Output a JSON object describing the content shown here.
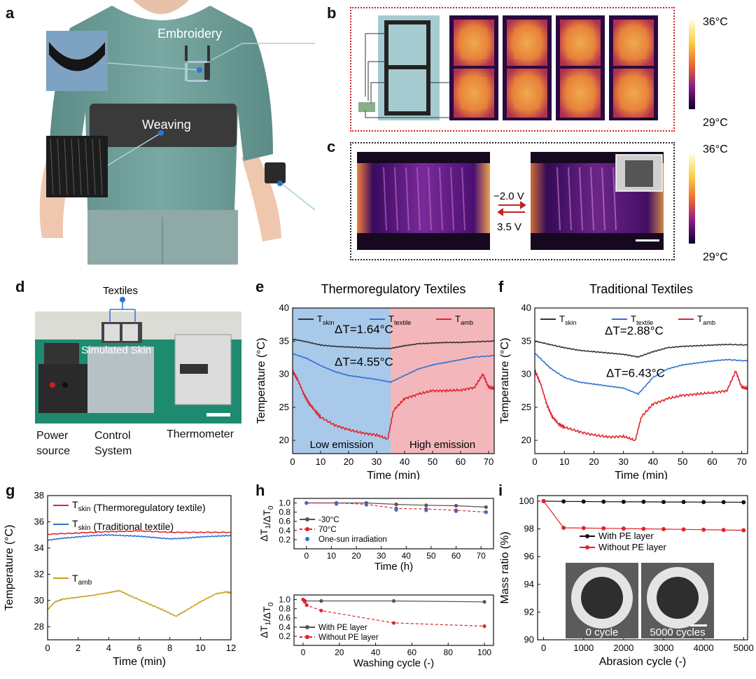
{
  "panels": {
    "a": {
      "letter": "a",
      "embroidery": "Embroidery",
      "weaving": "Weaving"
    },
    "b": {
      "letter": "b",
      "scale_max": "36°C",
      "scale_min": "29°C"
    },
    "c": {
      "letter": "c",
      "voltage_top": "−2.0 V",
      "voltage_bottom": "3.5 V",
      "scale_max": "36°C",
      "scale_min": "29°C"
    },
    "d": {
      "letter": "d",
      "textiles": "Textiles",
      "simulated_skin": "Simulated Skin",
      "power_source_1": "Power",
      "power_source_2": "source",
      "control_1": "Control",
      "control_2": "System",
      "thermometer": "Thermometer"
    },
    "e": {
      "letter": "e"
    },
    "f": {
      "letter": "f"
    },
    "g": {
      "letter": "g"
    },
    "h": {
      "letter": "h"
    },
    "i": {
      "letter": "i",
      "img_label_0": "0 cycle",
      "img_label_1": "5000 cycles"
    }
  },
  "chart_data": [
    {
      "id": "e",
      "type": "line",
      "title": "Thermoregulatory Textiles",
      "xlabel": "Time (min)",
      "ylabel": "Temperature (°C)",
      "xlim": [
        0,
        72
      ],
      "ylim": [
        18,
        40
      ],
      "xticks": [
        0,
        10,
        20,
        30,
        40,
        50,
        60,
        70
      ],
      "yticks": [
        20,
        25,
        30,
        35,
        40
      ],
      "regions": [
        {
          "label": "Low emission",
          "x": [
            0,
            35
          ],
          "color": "#a9c9ea"
        },
        {
          "label": "High emission",
          "x": [
            35,
            72
          ],
          "color": "#f3b7bb"
        }
      ],
      "legend": [
        "T_skin",
        "T_textile",
        "T_amb"
      ],
      "annotations": [
        "ΔT=1.64°C",
        "ΔT=4.55°C"
      ],
      "series": [
        {
          "name": "T_skin",
          "color": "#333333",
          "x": [
            0,
            5,
            10,
            15,
            20,
            25,
            30,
            35,
            40,
            45,
            50,
            55,
            60,
            65,
            72
          ],
          "y": [
            35.3,
            34.9,
            34.4,
            34.2,
            34.1,
            34.0,
            33.9,
            33.9,
            34.3,
            34.6,
            34.7,
            34.8,
            34.8,
            34.9,
            35.0
          ]
        },
        {
          "name": "T_textile",
          "color": "#2f72d3",
          "x": [
            0,
            5,
            10,
            15,
            20,
            25,
            30,
            35,
            40,
            45,
            50,
            55,
            60,
            65,
            72
          ],
          "y": [
            33.1,
            32.4,
            31.3,
            30.4,
            29.8,
            29.5,
            29.2,
            28.8,
            29.8,
            30.8,
            31.4,
            31.8,
            32.2,
            32.6,
            32.8
          ]
        },
        {
          "name": "T_amb",
          "color": "#e0252c",
          "x": [
            0,
            2,
            4,
            6,
            8,
            10,
            15,
            20,
            25,
            30,
            34,
            36,
            40,
            45,
            50,
            55,
            60,
            65,
            68,
            70,
            72
          ],
          "y": [
            30.5,
            29.0,
            27.0,
            25.5,
            24.5,
            23.5,
            22.3,
            21.6,
            21.1,
            20.8,
            20.2,
            24.5,
            26.3,
            27.0,
            27.5,
            27.5,
            27.6,
            28.0,
            30.0,
            28.0,
            27.8
          ]
        }
      ]
    },
    {
      "id": "f",
      "type": "line",
      "title": "Traditional Textiles",
      "xlabel": "Time (min)",
      "ylabel": "Temperature (°C)",
      "xlim": [
        0,
        72
      ],
      "ylim": [
        18,
        40
      ],
      "xticks": [
        0,
        10,
        20,
        30,
        40,
        50,
        60,
        70
      ],
      "yticks": [
        20,
        25,
        30,
        35,
        40
      ],
      "legend": [
        "T_skin",
        "T_textile",
        "T_amb"
      ],
      "annotations": [
        "ΔT=2.88°C",
        "ΔT=6.43°C"
      ],
      "series": [
        {
          "name": "T_skin",
          "color": "#333333",
          "x": [
            0,
            5,
            10,
            15,
            20,
            25,
            30,
            35,
            40,
            45,
            50,
            55,
            60,
            65,
            72
          ],
          "y": [
            35.0,
            34.5,
            34.0,
            33.6,
            33.4,
            33.2,
            33.0,
            32.6,
            33.4,
            34.0,
            34.2,
            34.3,
            34.4,
            34.5,
            34.4
          ]
        },
        {
          "name": "T_textile",
          "color": "#2f72d3",
          "x": [
            0,
            5,
            10,
            15,
            20,
            25,
            30,
            35,
            40,
            45,
            50,
            55,
            60,
            65,
            72
          ],
          "y": [
            33.2,
            31.0,
            29.5,
            28.8,
            28.5,
            28.2,
            27.9,
            27.0,
            29.5,
            30.8,
            31.4,
            31.7,
            32.0,
            32.2,
            32.0
          ]
        },
        {
          "name": "T_amb",
          "color": "#e0252c",
          "x": [
            0,
            2,
            4,
            6,
            8,
            10,
            15,
            20,
            25,
            30,
            34,
            36,
            40,
            45,
            50,
            55,
            60,
            65,
            68,
            70,
            72
          ],
          "y": [
            30.6,
            28.5,
            25.5,
            23.5,
            22.5,
            22.0,
            21.3,
            20.8,
            20.5,
            20.6,
            20.0,
            23.5,
            25.5,
            26.3,
            26.8,
            27.0,
            27.2,
            27.5,
            30.5,
            28.0,
            27.8
          ]
        }
      ]
    },
    {
      "id": "g",
      "type": "line",
      "xlabel": "Time (min)",
      "ylabel": "Temperature (°C)",
      "xlim": [
        0,
        12
      ],
      "ylim": [
        27,
        38
      ],
      "xticks": [
        0,
        2,
        4,
        6,
        8,
        10,
        12
      ],
      "yticks": [
        28,
        30,
        32,
        34,
        36,
        38
      ],
      "legend": [
        "T_skin (Thermoregulatory textile)",
        "T_skin (Traditional textile)"
      ],
      "label_amb": "T_amb",
      "series": [
        {
          "name": "T_skin (Thermoregulatory textile)",
          "color": "#e0252c",
          "x": [
            0,
            2,
            4,
            6,
            8,
            10,
            12
          ],
          "y": [
            35.05,
            35.15,
            35.25,
            35.3,
            35.2,
            35.2,
            35.2
          ]
        },
        {
          "name": "T_skin (Traditional textile)",
          "color": "#2f72d3",
          "x": [
            0,
            1,
            2,
            3,
            4,
            5,
            6,
            7,
            8,
            9,
            10,
            11,
            12
          ],
          "y": [
            34.6,
            34.75,
            34.85,
            34.95,
            35.0,
            34.95,
            34.9,
            34.8,
            34.7,
            34.75,
            34.85,
            34.9,
            34.95
          ]
        },
        {
          "name": "T_amb",
          "color": "#c8a020",
          "x": [
            0,
            0.5,
            1,
            2,
            3,
            4,
            4.7,
            5.5,
            6.5,
            7.5,
            8.4,
            9,
            10,
            11,
            11.7,
            12
          ],
          "y": [
            29.3,
            29.9,
            30.1,
            30.25,
            30.4,
            30.6,
            30.75,
            30.3,
            29.8,
            29.3,
            28.8,
            29.2,
            29.9,
            30.5,
            30.65,
            30.6
          ]
        }
      ]
    },
    {
      "id": "h_top",
      "type": "line",
      "xlabel": "Time (h)",
      "ylabel": "ΔT1/ΔT0",
      "xlim": [
        -5,
        75
      ],
      "ylim": [
        0,
        1.1
      ],
      "xticks": [
        0,
        10,
        20,
        30,
        40,
        50,
        60,
        70
      ],
      "yticks": [
        0.2,
        0.4,
        0.6,
        0.8,
        1.0
      ],
      "legend": [
        "-30°C",
        "70°C",
        "One-sun irradiation"
      ],
      "series": [
        {
          "name": "-30°C",
          "color": "#555555",
          "x": [
            0,
            12,
            24,
            36,
            48,
            60,
            72
          ],
          "y": [
            1.0,
            1.0,
            1.0,
            0.97,
            0.95,
            0.94,
            0.91
          ]
        },
        {
          "name": "70°C",
          "color": "#e0252c",
          "dashed": true,
          "x": [
            0,
            12,
            24,
            36,
            48,
            60,
            72
          ],
          "y": [
            1.0,
            1.0,
            0.97,
            0.88,
            0.87,
            0.84,
            0.8
          ]
        },
        {
          "name": "One-sun irradiation",
          "color": "#2f72d3",
          "markerOnly": true,
          "x": [
            0,
            12,
            24,
            36,
            48,
            60,
            72
          ],
          "y": [
            1.0,
            0.98,
            0.96,
            0.85,
            0.84,
            0.82,
            0.8
          ]
        }
      ]
    },
    {
      "id": "h_bottom",
      "type": "line",
      "xlabel": "Washing cycle (-)",
      "ylabel": "ΔT1/ΔT0",
      "xlim": [
        -5,
        105
      ],
      "ylim": [
        0,
        1.1
      ],
      "xticks": [
        0,
        20,
        40,
        60,
        80,
        100
      ],
      "yticks": [
        0.2,
        0.4,
        0.6,
        0.8,
        1.0
      ],
      "legend": [
        "With PE layer",
        "Without PE layer"
      ],
      "series": [
        {
          "name": "With PE layer",
          "color": "#555555",
          "x": [
            0,
            1,
            10,
            50,
            100
          ],
          "y": [
            1.0,
            0.97,
            0.97,
            0.97,
            0.95
          ]
        },
        {
          "name": "Without PE layer",
          "color": "#e0252c",
          "dashed": true,
          "x": [
            0,
            1,
            2,
            10,
            50,
            100
          ],
          "y": [
            1.0,
            0.95,
            0.88,
            0.76,
            0.49,
            0.42
          ]
        }
      ]
    },
    {
      "id": "i",
      "type": "line",
      "xlabel": "Abrasion cycle (-)",
      "ylabel": "Mass ratio (%)",
      "xlim": [
        -150,
        5100
      ],
      "ylim": [
        90,
        100.4
      ],
      "xticks": [
        0,
        1000,
        2000,
        3000,
        4000,
        5000
      ],
      "yticks": [
        90,
        92,
        94,
        96,
        98,
        100
      ],
      "legend": [
        "With PE layer",
        "Without PE layer"
      ],
      "series": [
        {
          "name": "With PE layer",
          "color": "#111111",
          "x": [
            0,
            500,
            1000,
            1500,
            2000,
            2500,
            3000,
            3500,
            4000,
            4500,
            5000
          ],
          "y": [
            100,
            99.98,
            99.97,
            99.96,
            99.95,
            99.95,
            99.94,
            99.94,
            99.93,
            99.93,
            99.92
          ]
        },
        {
          "name": "Without PE layer",
          "color": "#e0252c",
          "x": [
            0,
            500,
            1000,
            1500,
            2000,
            2500,
            3000,
            3500,
            4000,
            4500,
            5000
          ],
          "y": [
            100,
            98.08,
            98.06,
            98.04,
            98.02,
            98.0,
            97.98,
            97.96,
            97.94,
            97.92,
            97.9
          ]
        }
      ]
    }
  ]
}
